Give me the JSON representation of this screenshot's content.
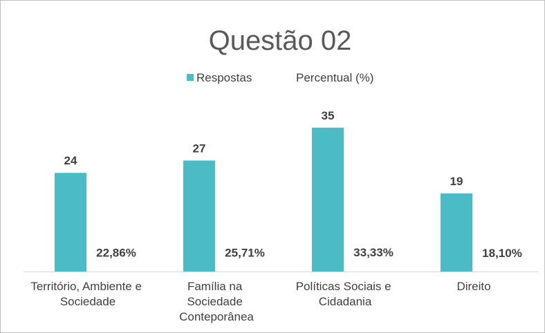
{
  "chart_data": {
    "type": "bar",
    "title": "Questão 02",
    "categories": [
      "Território, Ambiente e Sociedade",
      "Família na Sociedade Conteporânea",
      "Políticas Sociais e Cidadania",
      "Direito"
    ],
    "series": [
      {
        "name": "Respostas",
        "color": "#4bbcc6",
        "values": [
          24,
          27,
          35,
          19
        ],
        "value_labels": [
          "24",
          "27",
          "35",
          "19"
        ]
      },
      {
        "name": "Percentual (%)",
        "color": "none",
        "values": [
          0.2286,
          0.2571,
          0.3333,
          0.181
        ],
        "value_labels": [
          "22,86%",
          "25,71%",
          "33,33%",
          "18,10%"
        ]
      }
    ],
    "ylim": [
      0,
      40
    ]
  }
}
